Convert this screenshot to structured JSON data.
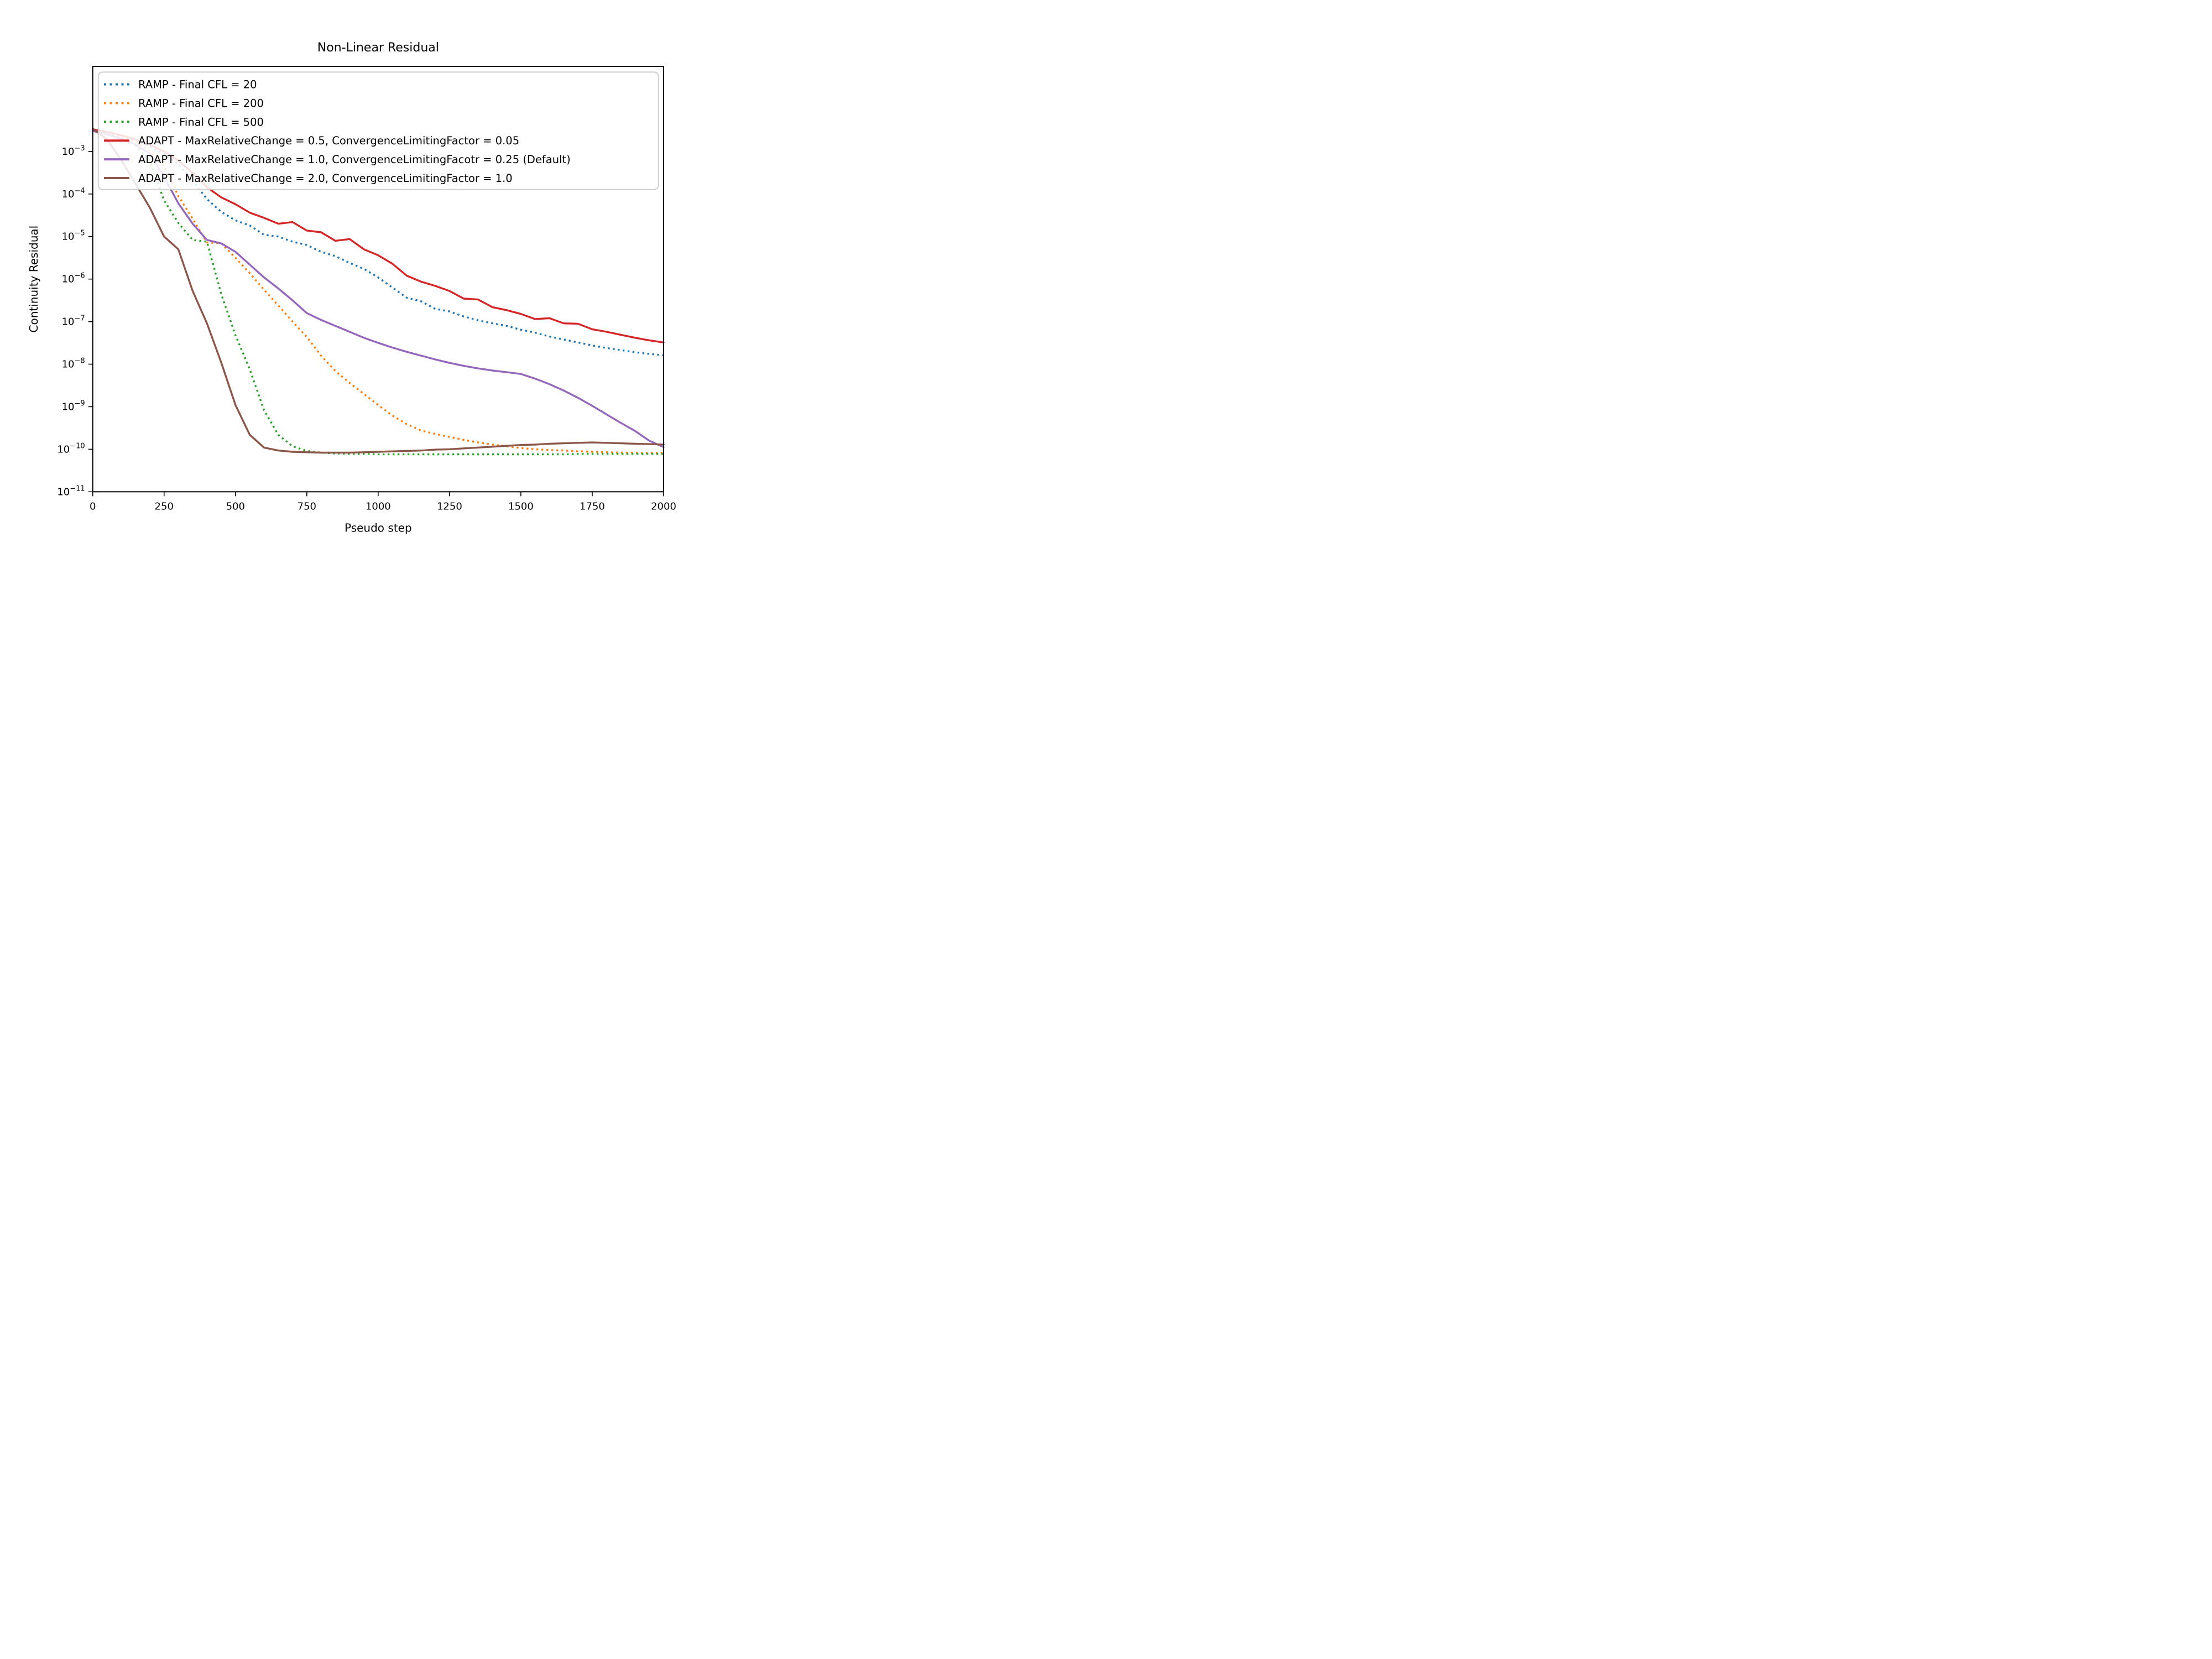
{
  "chart_data": {
    "type": "line",
    "title": "Non-Linear Residual",
    "xlabel": "Pseudo step",
    "ylabel": "Continuity Residual",
    "x_axis": {
      "min": 0,
      "max": 2000,
      "tick_labels": [
        "0",
        "250",
        "500",
        "750",
        "1000",
        "1250",
        "1500",
        "1750",
        "2000"
      ],
      "tick_values": [
        0,
        250,
        500,
        750,
        1000,
        1250,
        1500,
        1750,
        2000
      ]
    },
    "y_axis": {
      "scale": "log10",
      "top_log10": -1.0,
      "bottom_log10": -11,
      "tick_exponents": [
        -3,
        -4,
        -5,
        -6,
        -7,
        -8,
        -9,
        -10,
        -11
      ],
      "tick_base": "10"
    },
    "grid": "off",
    "legend_position": "upper left inside",
    "x_sampling": {
      "start": 0,
      "end": 2000,
      "step": 50
    },
    "series": [
      {
        "name": "RAMP - Final CFL = 20",
        "color": "#1f77b4",
        "style": "dotted",
        "values_log10": [
          -2.5,
          -2.56,
          -2.64,
          -2.74,
          -2.88,
          -3.06,
          -3.3,
          -3.68,
          -4.12,
          -4.42,
          -4.62,
          -4.74,
          -4.96,
          -5.0,
          -5.12,
          -5.2,
          -5.36,
          -5.46,
          -5.62,
          -5.76,
          -5.96,
          -6.2,
          -6.44,
          -6.52,
          -6.7,
          -6.76,
          -6.88,
          -6.97,
          -7.04,
          -7.1,
          -7.19,
          -7.26,
          -7.35,
          -7.42,
          -7.49,
          -7.56,
          -7.62,
          -7.67,
          -7.72,
          -7.76,
          -7.79
        ]
      },
      {
        "name": "RAMP - Final CFL = 200",
        "color": "#ff7f0e",
        "style": "dotted",
        "values_log10": [
          -2.51,
          -2.57,
          -2.65,
          -2.78,
          -2.98,
          -3.35,
          -4.05,
          -4.58,
          -5.14,
          -5.16,
          -5.5,
          -5.86,
          -6.25,
          -6.62,
          -7.0,
          -7.36,
          -7.8,
          -8.16,
          -8.44,
          -8.7,
          -8.96,
          -9.21,
          -9.41,
          -9.56,
          -9.64,
          -9.71,
          -9.78,
          -9.84,
          -9.89,
          -9.93,
          -9.97,
          -10.0,
          -10.02,
          -10.03,
          -10.05,
          -10.06,
          -10.07,
          -10.08,
          -10.08,
          -10.09,
          -10.08
        ]
      },
      {
        "name": "RAMP - Final CFL = 500",
        "color": "#2ca02c",
        "style": "dotted",
        "values_log10": [
          -2.52,
          -2.58,
          -2.68,
          -2.86,
          -3.22,
          -4.15,
          -4.68,
          -5.08,
          -5.12,
          -6.35,
          -7.32,
          -8.12,
          -9.08,
          -9.66,
          -9.93,
          -10.04,
          -10.08,
          -10.1,
          -10.11,
          -10.11,
          -10.12,
          -10.12,
          -10.12,
          -10.12,
          -10.12,
          -10.12,
          -10.12,
          -10.12,
          -10.12,
          -10.12,
          -10.12,
          -10.12,
          -10.12,
          -10.12,
          -10.11,
          -10.11,
          -10.11,
          -10.11,
          -10.11,
          -10.11,
          -10.11
        ]
      },
      {
        "name": "ADAPT - MaxRelativeChange = 0.5, ConvergenceLimitingFactor = 0.05",
        "color": "#d62728",
        "style": "solid",
        "values_log10": [
          -2.48,
          -2.54,
          -2.62,
          -2.72,
          -2.84,
          -3.0,
          -3.22,
          -3.5,
          -3.84,
          -4.08,
          -4.24,
          -4.44,
          -4.56,
          -4.7,
          -4.66,
          -4.86,
          -4.9,
          -5.1,
          -5.06,
          -5.3,
          -5.44,
          -5.64,
          -5.92,
          -6.06,
          -6.16,
          -6.28,
          -6.46,
          -6.48,
          -6.66,
          -6.73,
          -6.82,
          -6.94,
          -6.92,
          -7.04,
          -7.05,
          -7.18,
          -7.24,
          -7.31,
          -7.38,
          -7.44,
          -7.49
        ]
      },
      {
        "name": "ADAPT - MaxRelativeChange = 1.0, ConvergenceLimitingFacotr = 0.25 (Default)",
        "color": "#9467bd",
        "style": "solid",
        "values_log10": [
          -2.52,
          -2.6,
          -2.7,
          -2.84,
          -3.05,
          -3.6,
          -4.22,
          -4.7,
          -5.08,
          -5.16,
          -5.36,
          -5.66,
          -5.96,
          -6.22,
          -6.5,
          -6.8,
          -6.96,
          -7.1,
          -7.24,
          -7.38,
          -7.5,
          -7.61,
          -7.71,
          -7.8,
          -7.89,
          -7.97,
          -8.04,
          -8.1,
          -8.15,
          -8.19,
          -8.23,
          -8.34,
          -8.47,
          -8.62,
          -8.79,
          -8.98,
          -9.18,
          -9.38,
          -9.57,
          -9.8,
          -9.95
        ]
      },
      {
        "name": "ADAPT - MaxRelativeChange = 2.0, ConvergenceLimitingFactor = 1.0",
        "color": "#8c564b",
        "style": "solid",
        "values_log10": [
          -2.46,
          -2.72,
          -3.2,
          -3.76,
          -4.32,
          -5.0,
          -5.3,
          -6.28,
          -7.04,
          -7.96,
          -8.96,
          -9.66,
          -9.96,
          -10.03,
          -10.06,
          -10.07,
          -10.08,
          -10.08,
          -10.08,
          -10.07,
          -10.06,
          -10.05,
          -10.04,
          -10.03,
          -10.01,
          -10.0,
          -9.98,
          -9.96,
          -9.94,
          -9.92,
          -9.9,
          -9.89,
          -9.87,
          -9.86,
          -9.85,
          -9.84,
          -9.85,
          -9.86,
          -9.87,
          -9.88,
          -9.89
        ]
      }
    ]
  },
  "figure": {
    "background": "#ffffff",
    "axes_color": "#000000"
  }
}
